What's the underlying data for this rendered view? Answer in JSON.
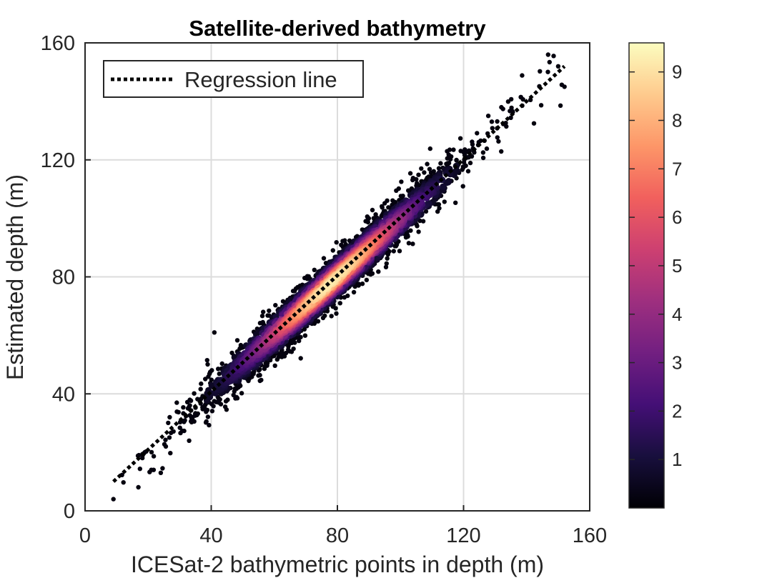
{
  "chart_data": {
    "type": "scatter",
    "title": "Satellite-derived bathymetry",
    "xlabel": "ICESat-2 bathymetric points in depth (m)",
    "ylabel": "Estimated depth (m)",
    "xlim": [
      0,
      160
    ],
    "ylim": [
      0,
      160
    ],
    "xticks": [
      0,
      40,
      80,
      120,
      160
    ],
    "yticks": [
      0,
      40,
      80,
      120,
      160
    ],
    "grid": true,
    "legend": {
      "position": "top-left",
      "entries": [
        {
          "label": "Regression line",
          "style": "dotted",
          "color": "#000000"
        }
      ]
    },
    "regression_line": {
      "x": [
        9,
        152
      ],
      "y": [
        10,
        152
      ]
    },
    "point_cloud": {
      "x_range": [
        9,
        152
      ],
      "relation": "y ≈ x",
      "density_peak_x": 78,
      "description_color": "point density"
    },
    "sample_points": [
      {
        "x": 9,
        "y": 4
      },
      {
        "x": 21,
        "y": 14
      },
      {
        "x": 24,
        "y": 13
      },
      {
        "x": 33,
        "y": 24
      },
      {
        "x": 41,
        "y": 61
      },
      {
        "x": 132,
        "y": 138
      },
      {
        "x": 150,
        "y": 152
      },
      {
        "x": 152,
        "y": 145
      }
    ],
    "colorbar": {
      "colormap": "magma",
      "range": [
        0,
        9.6
      ],
      "ticks": [
        1,
        2,
        3,
        4,
        5,
        6,
        7,
        8,
        9
      ],
      "stops": [
        "#000004",
        "#180f3d",
        "#440f76",
        "#721f81",
        "#9e2f7f",
        "#cd4071",
        "#f1605d",
        "#fd9668",
        "#feca8d",
        "#fcfdbf"
      ]
    }
  }
}
